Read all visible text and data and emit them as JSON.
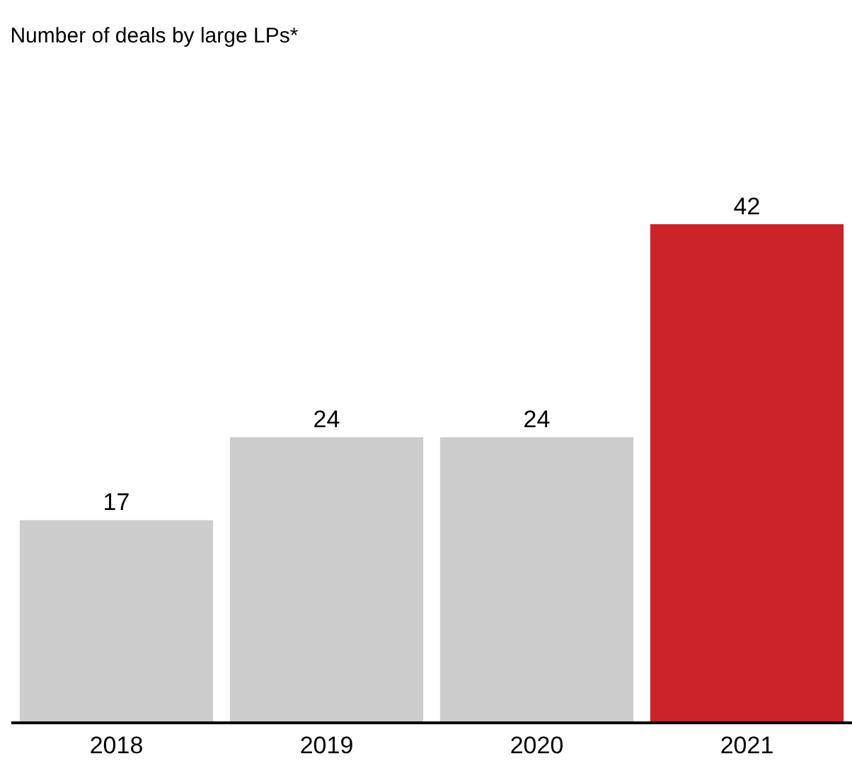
{
  "chart_data": {
    "type": "bar",
    "title": "Number of deals by large LPs*",
    "categories": [
      "2018",
      "2019",
      "2020",
      "2021"
    ],
    "values": [
      17,
      24,
      24,
      42
    ],
    "colors": [
      "#cccccc",
      "#cccccc",
      "#cccccc",
      "#cc2229"
    ],
    "data_labels": true
  }
}
